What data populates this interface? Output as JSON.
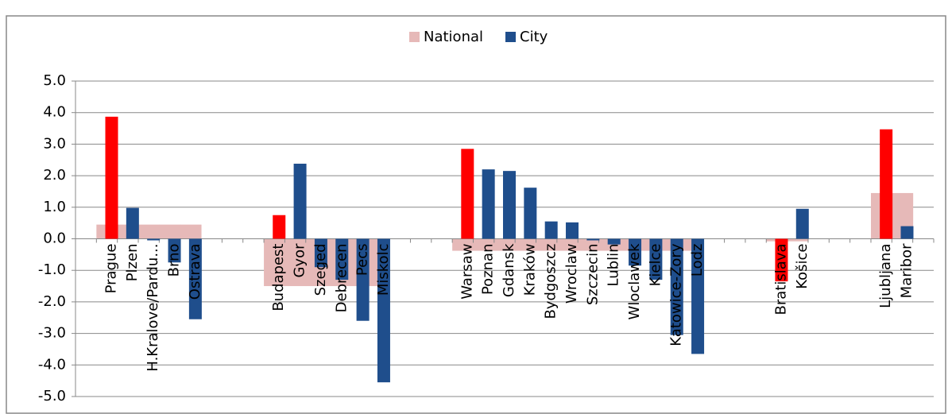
{
  "chart_data": {
    "type": "bar",
    "categories": [
      null,
      "Prague",
      "Plzen",
      "H.Kralove/Pardu...",
      "Brno",
      "Ostrava",
      null,
      null,
      null,
      "Budapest",
      "Gyor",
      "Szeged",
      "Debrecen",
      "Pecs",
      "Miskolc",
      null,
      null,
      null,
      "Warsaw",
      "Poznan",
      "Gdansk",
      "Kraków",
      "Bydgoszcz",
      "Wroclaw",
      "Szczecin",
      "Lublin",
      "Wloclawek",
      "Kielce",
      "Katowice-Zory",
      "Lodz",
      null,
      null,
      null,
      "Bratislava",
      "Košice",
      null,
      null,
      null,
      "Ljubljana",
      "Maribor",
      null
    ],
    "series": [
      {
        "name": "National",
        "color": "#e6b9b8",
        "values": [
          null,
          0.45,
          0.45,
          0.45,
          0.45,
          0.45,
          null,
          null,
          null,
          -1.5,
          -1.5,
          -1.5,
          -1.5,
          -1.5,
          -1.5,
          null,
          null,
          null,
          -0.38,
          -0.38,
          -0.38,
          -0.38,
          -0.38,
          -0.38,
          -0.38,
          -0.38,
          -0.38,
          -0.38,
          -0.38,
          -0.38,
          null,
          null,
          null,
          -0.08,
          -0.08,
          null,
          null,
          null,
          1.45,
          1.45,
          null
        ]
      },
      {
        "name": "City",
        "color": "#1f4e8c",
        "colors": [
          null,
          "#ff0000",
          "#1f4e8c",
          "#1f4e8c",
          "#1f4e8c",
          "#1f4e8c",
          null,
          null,
          null,
          "#ff0000",
          "#1f4e8c",
          "#1f4e8c",
          "#1f4e8c",
          "#1f4e8c",
          "#1f4e8c",
          null,
          null,
          null,
          "#ff0000",
          "#1f4e8c",
          "#1f4e8c",
          "#1f4e8c",
          "#1f4e8c",
          "#1f4e8c",
          "#1f4e8c",
          "#1f4e8c",
          "#1f4e8c",
          "#1f4e8c",
          "#1f4e8c",
          "#1f4e8c",
          null,
          null,
          null,
          "#ff0000",
          "#1f4e8c",
          null,
          null,
          null,
          "#ff0000",
          "#1f4e8c",
          null
        ],
        "values": [
          null,
          3.87,
          0.98,
          -0.05,
          -0.75,
          -2.55,
          null,
          null,
          null,
          0.75,
          2.38,
          -0.9,
          -1.3,
          -2.6,
          -4.55,
          null,
          null,
          null,
          2.85,
          2.2,
          2.15,
          1.62,
          0.55,
          0.52,
          -0.05,
          -0.18,
          -0.85,
          -1.3,
          -3.05,
          -3.65,
          null,
          null,
          null,
          -1.35,
          0.95,
          null,
          null,
          null,
          3.47,
          0.4,
          null
        ]
      }
    ],
    "ylim": [
      -5,
      5
    ],
    "yticks": [
      {
        "value": -5,
        "label": "-5.0"
      },
      {
        "value": -4,
        "label": "-4.0"
      },
      {
        "value": -3,
        "label": "-3.0"
      },
      {
        "value": -2,
        "label": "-2.0"
      },
      {
        "value": -1,
        "label": "-1.0"
      },
      {
        "value": 0,
        "label": "0.0"
      },
      {
        "value": 1,
        "label": "1.0"
      },
      {
        "value": 2,
        "label": "2.0"
      },
      {
        "value": 3,
        "label": "3.0"
      },
      {
        "value": 4,
        "label": "4.0"
      },
      {
        "value": 5,
        "label": "5.0"
      }
    ],
    "grid": true,
    "legend": "top"
  }
}
